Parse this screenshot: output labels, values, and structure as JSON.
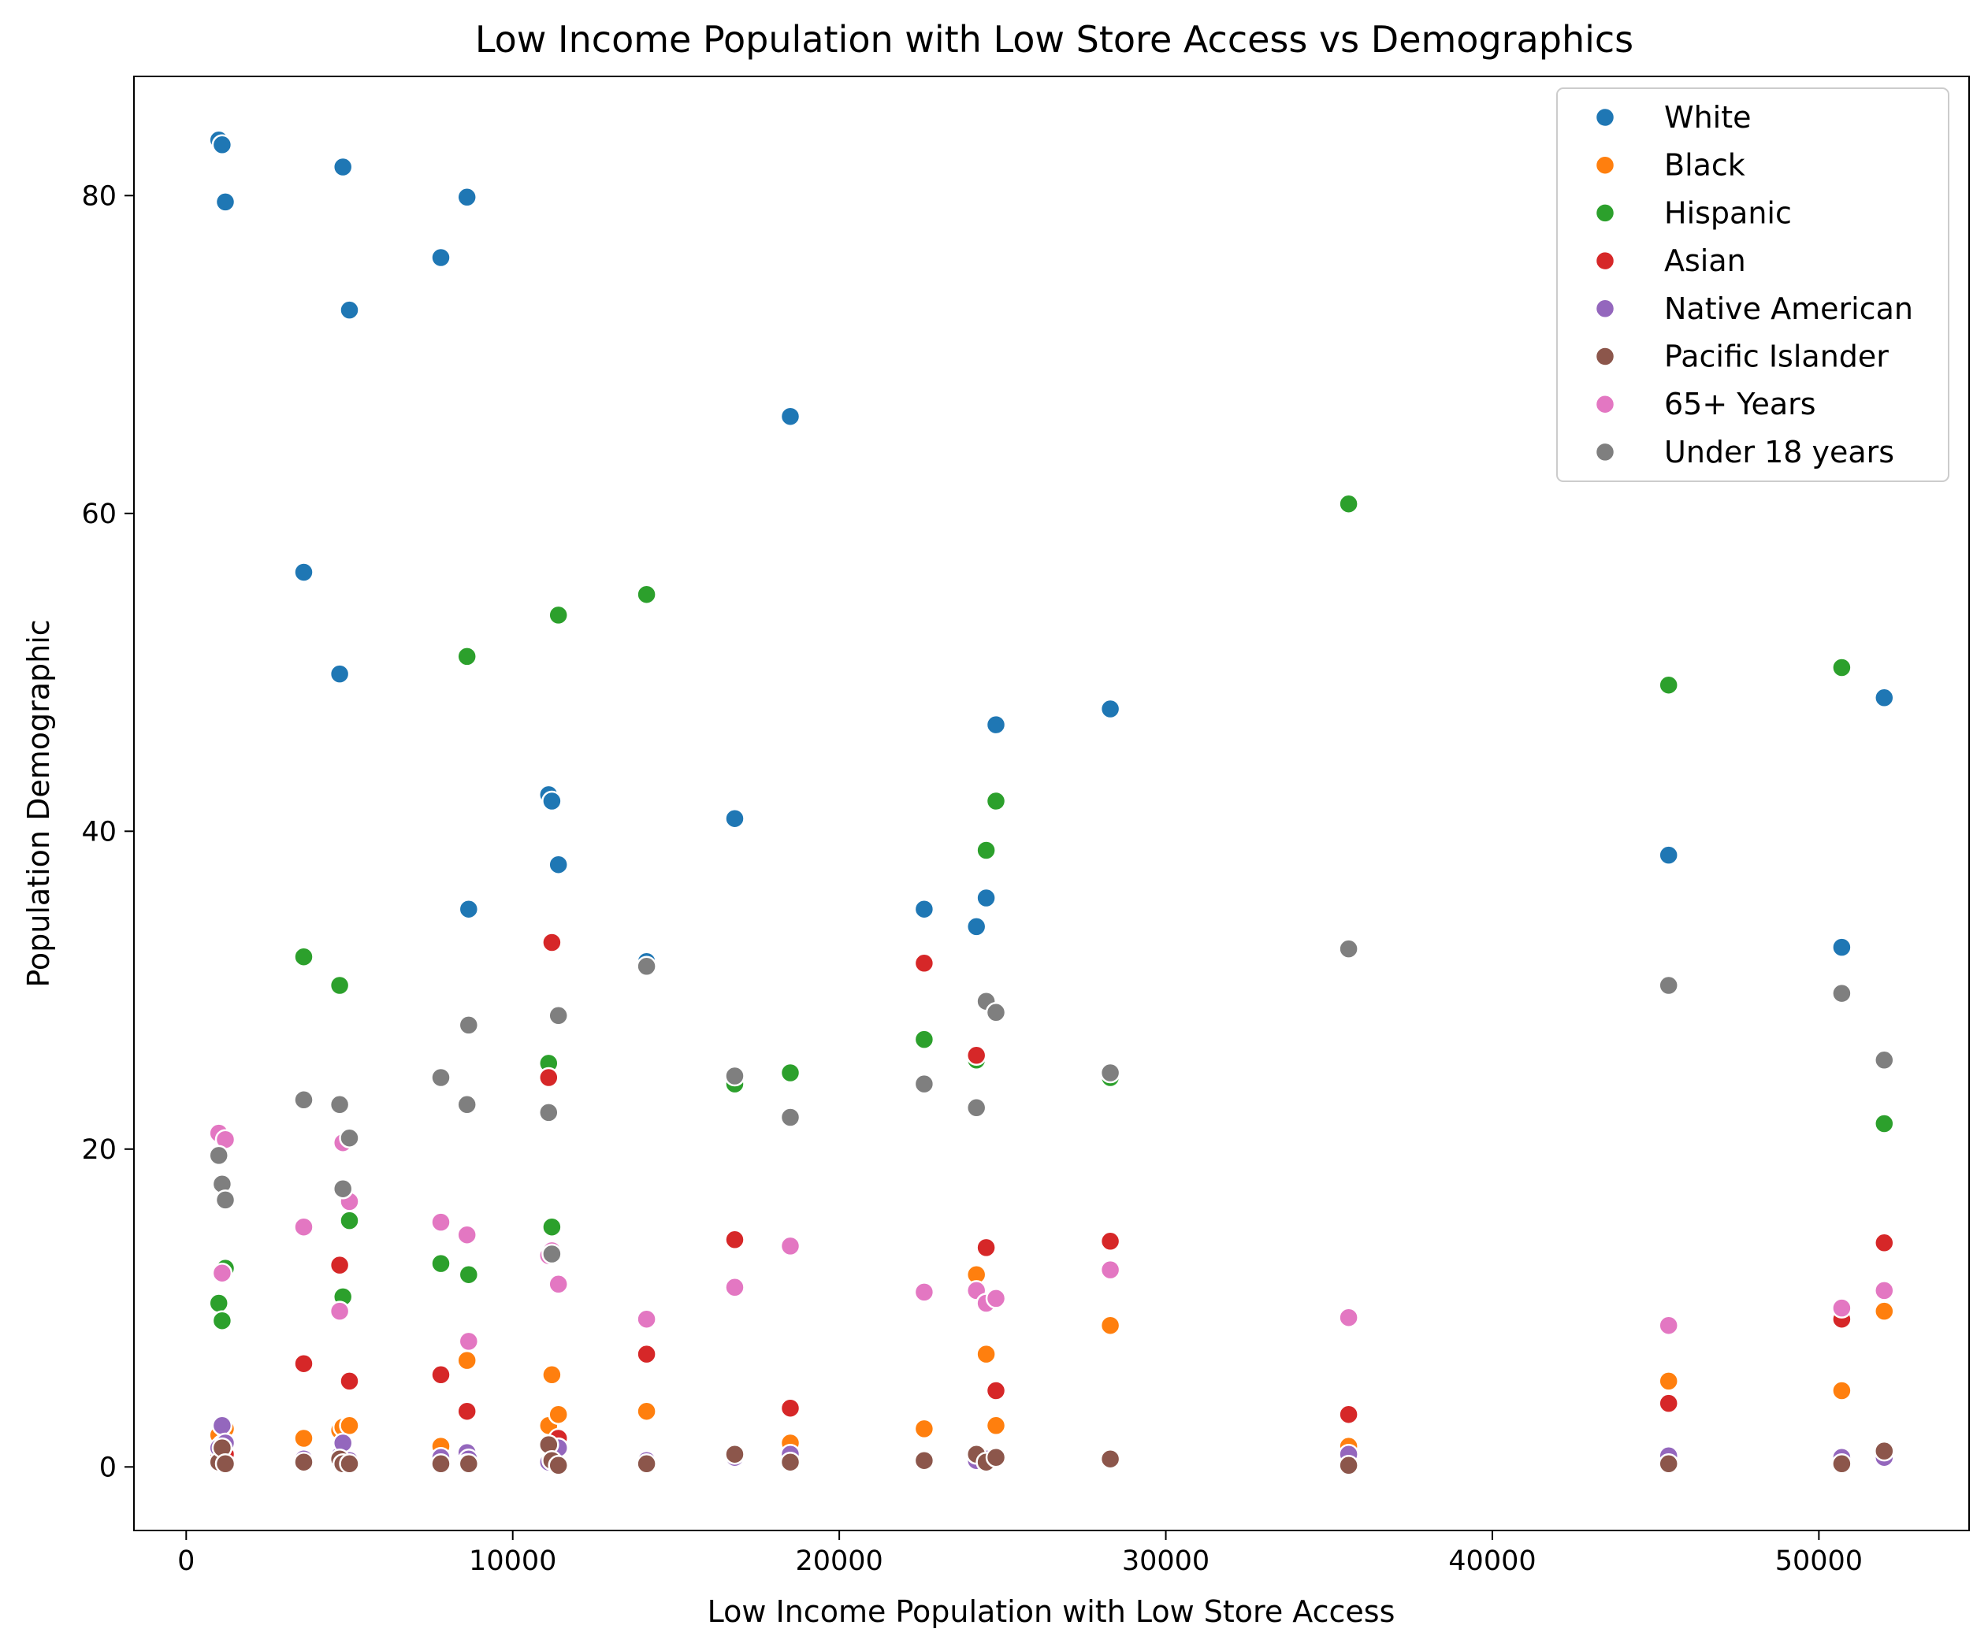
{
  "chart_data": {
    "type": "scatter",
    "title": "Low Income Population with Low Store Access vs Demographics",
    "xlabel": "Low Income Population with Low Store Access",
    "ylabel": "Population Demographic",
    "xlim": [
      -1600,
      54600
    ],
    "ylim": [
      -4,
      87.5
    ],
    "xticks": [
      0,
      10000,
      20000,
      30000,
      40000,
      50000
    ],
    "xtick_labels": [
      "0",
      "10000",
      "20000",
      "30000",
      "40000",
      "50000"
    ],
    "yticks": [
      0,
      20,
      40,
      60,
      80
    ],
    "ytick_labels": [
      "0",
      "20",
      "40",
      "60",
      "80"
    ],
    "legend_position": "upper right",
    "grid": false,
    "x": [
      1000,
      1100,
      1200,
      3600,
      4700,
      4800,
      5000,
      7800,
      8600,
      8650,
      11100,
      11200,
      11400,
      14100,
      16800,
      18500,
      22600,
      24200,
      24500,
      24800,
      28300,
      35600,
      45400,
      50700,
      52000
    ],
    "series": [
      {
        "name": "White",
        "color": "#1f77b4",
        "values": [
          83.5,
          83.2,
          79.6,
          56.3,
          49.9,
          81.8,
          72.8,
          76.1,
          79.9,
          35.1,
          42.3,
          41.9,
          37.9,
          31.8,
          40.8,
          66.1,
          35.1,
          34.0,
          35.8,
          46.7,
          47.7,
          60.5,
          38.5,
          32.7,
          48.4
        ]
      },
      {
        "name": "Black",
        "color": "#ff7f0e",
        "values": [
          2.0,
          1.0,
          2.4,
          1.8,
          2.3,
          2.5,
          2.6,
          1.3,
          6.7,
          1.0,
          2.6,
          5.8,
          3.3,
          3.5,
          0.8,
          1.5,
          2.4,
          12.1,
          7.1,
          2.6,
          8.9,
          1.3,
          5.4,
          4.8,
          9.8
        ]
      },
      {
        "name": "Hispanic",
        "color": "#2ca02c",
        "values": [
          10.3,
          9.2,
          12.5,
          32.1,
          30.3,
          10.7,
          15.5,
          12.8,
          51.0,
          12.1,
          25.4,
          15.1,
          53.6,
          54.9,
          24.1,
          24.8,
          26.9,
          25.6,
          38.8,
          41.9,
          24.5,
          60.6,
          49.2,
          50.3,
          21.6
        ]
      },
      {
        "name": "Asian",
        "color": "#d62728",
        "values": [
          0.6,
          1.4,
          0.8,
          6.5,
          12.7,
          0.7,
          5.4,
          5.8,
          3.5,
          0.9,
          24.5,
          33.0,
          1.8,
          7.1,
          14.3,
          3.7,
          31.7,
          25.9,
          13.8,
          4.8,
          14.2,
          3.3,
          4.0,
          9.3,
          14.1
        ]
      },
      {
        "name": "Native American",
        "color": "#9467bd",
        "values": [
          1.2,
          2.6,
          1.5,
          0.5,
          0.7,
          1.5,
          0.4,
          0.6,
          0.9,
          0.5,
          0.3,
          0.5,
          1.2,
          0.4,
          0.6,
          0.8,
          0.5,
          0.4,
          0.5,
          0.6,
          0.5,
          0.8,
          0.7,
          0.6,
          0.6
        ]
      },
      {
        "name": "Pacific Islander",
        "color": "#8c564b",
        "values": [
          0.3,
          1.2,
          0.2,
          0.3,
          0.5,
          0.2,
          0.2,
          0.2,
          0.2,
          0.2,
          1.4,
          0.4,
          0.1,
          0.2,
          0.8,
          0.3,
          0.4,
          0.8,
          0.3,
          0.6,
          0.5,
          0.1,
          0.2,
          0.2,
          1.0
        ]
      },
      {
        "name": "65+ Years",
        "color": "#e377c2",
        "values": [
          21.0,
          12.2,
          20.6,
          15.1,
          9.8,
          20.4,
          16.7,
          15.4,
          14.6,
          7.9,
          13.3,
          13.6,
          11.5,
          9.3,
          11.3,
          13.9,
          11.0,
          11.1,
          10.3,
          10.6,
          12.4,
          9.4,
          8.9,
          10.0,
          11.1
        ]
      },
      {
        "name": "Under 18 years",
        "color": "#7f7f7f",
        "values": [
          19.6,
          17.8,
          16.8,
          23.1,
          22.8,
          17.5,
          20.7,
          24.5,
          22.8,
          27.8,
          22.3,
          13.4,
          28.4,
          31.5,
          24.6,
          22.0,
          24.1,
          22.6,
          29.3,
          28.6,
          24.8,
          32.6,
          30.3,
          29.8,
          25.6
        ]
      }
    ]
  }
}
